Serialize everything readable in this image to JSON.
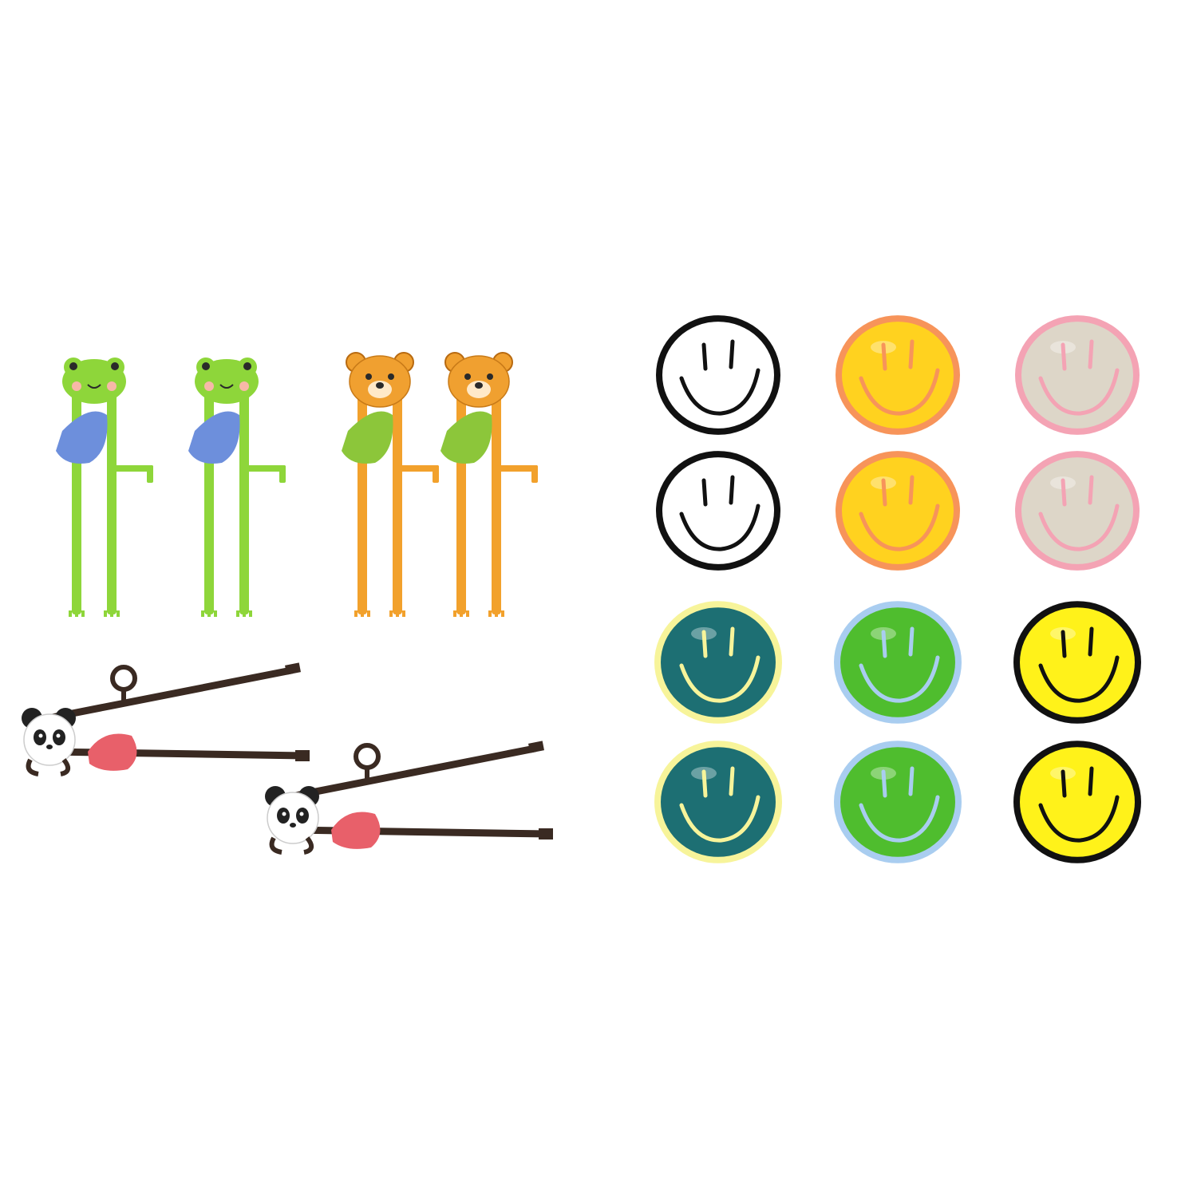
{
  "scene": "product-photo",
  "background_color": "#ffffff",
  "chopstick_sets": [
    {
      "animal": "frog",
      "stick_color": "#8ed63a",
      "head_color": "#8ed63a",
      "clip_color": "#6d8fdc",
      "count": 2
    },
    {
      "animal": "bear",
      "stick_color": "#f2a12c",
      "head_color": "#f0a030",
      "clip_color": "#8cc63a",
      "count": 2
    },
    {
      "animal": "panda",
      "stick_color": "#3a2a22",
      "head_color": "#ffffff",
      "clip_color": "#e8606a",
      "count": 2
    }
  ],
  "smiley_rests": [
    {
      "face": "#ffffff",
      "rim": "#111111",
      "line": "#111111"
    },
    {
      "face": "#ffd21f",
      "rim": "#f7945a",
      "line": "#f7945a"
    },
    {
      "face": "#ddd6c8",
      "rim": "#f4a3b4",
      "line": "#f4a3b4"
    },
    {
      "face": "#ffffff",
      "rim": "#111111",
      "line": "#111111"
    },
    {
      "face": "#ffd21f",
      "rim": "#f7945a",
      "line": "#f7945a"
    },
    {
      "face": "#ddd6c8",
      "rim": "#f4a3b4",
      "line": "#f4a3b4"
    },
    {
      "face": "#1d6f73",
      "rim": "#f7f49a",
      "line": "#f7f49a"
    },
    {
      "face": "#4fbd2e",
      "rim": "#a9cdf0",
      "line": "#a9cdf0"
    },
    {
      "face": "#fff21a",
      "rim": "#111111",
      "line": "#111111"
    },
    {
      "face": "#1d6f73",
      "rim": "#f7f49a",
      "line": "#f7f49a"
    },
    {
      "face": "#4fbd2e",
      "rim": "#a9cdf0",
      "line": "#a9cdf0"
    },
    {
      "face": "#fff21a",
      "rim": "#111111",
      "line": "#111111"
    }
  ]
}
